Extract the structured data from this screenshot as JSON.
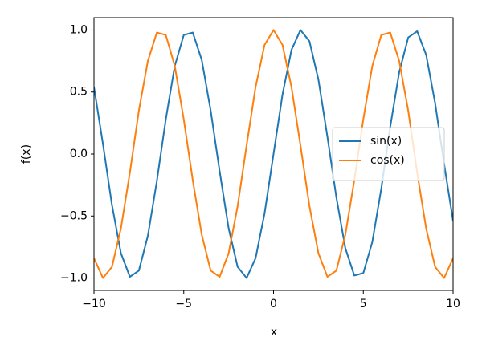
{
  "chart_data": {
    "type": "line",
    "x_label": "x",
    "y_label": "f(x)",
    "x": [
      -10,
      -9.5,
      -9,
      -8.5,
      -8,
      -7.5,
      -7,
      -6.5,
      -6,
      -5.5,
      -5,
      -4.5,
      -4,
      -3.5,
      -3,
      -2.5,
      -2,
      -1.5,
      -1,
      -0.5,
      0,
      0.5,
      1,
      1.5,
      2,
      2.5,
      3,
      3.5,
      4,
      4.5,
      5,
      5.5,
      6,
      6.5,
      7,
      7.5,
      8,
      8.5,
      9,
      9.5,
      10
    ],
    "series": [
      {
        "name": "sin(x)",
        "color": "#1f77b4",
        "values": [
          0.54,
          0.08,
          -0.41,
          -0.8,
          -0.99,
          -0.94,
          -0.66,
          -0.22,
          0.28,
          0.71,
          0.96,
          0.98,
          0.76,
          0.35,
          -0.14,
          -0.6,
          -0.91,
          -1.0,
          -0.84,
          -0.48,
          0,
          0.48,
          0.84,
          1.0,
          0.91,
          0.6,
          0.14,
          -0.35,
          -0.76,
          -0.98,
          -0.96,
          -0.71,
          -0.28,
          0.22,
          0.66,
          0.94,
          0.99,
          0.8,
          0.41,
          -0.08,
          -0.54
        ]
      },
      {
        "name": "cos(x)",
        "color": "#ff7f0e",
        "values": [
          -0.84,
          -1.0,
          -0.91,
          -0.6,
          -0.15,
          0.35,
          0.75,
          0.98,
          0.96,
          0.71,
          0.28,
          -0.21,
          -0.65,
          -0.94,
          -0.99,
          -0.8,
          -0.42,
          0.07,
          0.54,
          0.88,
          1.0,
          0.88,
          0.54,
          0.07,
          -0.42,
          -0.8,
          -0.99,
          -0.94,
          -0.65,
          -0.21,
          0.28,
          0.71,
          0.96,
          0.98,
          0.75,
          0.35,
          -0.15,
          -0.6,
          -0.91,
          -1.0,
          -0.84
        ]
      }
    ],
    "xlim": [
      -10,
      10
    ],
    "ylim": [
      -1.1,
      1.1
    ],
    "xticks": [
      {
        "value": -10,
        "label": "−10"
      },
      {
        "value": -5,
        "label": "−5"
      },
      0,
      5,
      10
    ],
    "yticks": [
      {
        "value": -1,
        "label": "−1.0"
      },
      {
        "value": -0.5,
        "label": "−0.5"
      },
      {
        "value": 0,
        "label": "0.0"
      },
      {
        "value": 0.5,
        "label": "0.5"
      },
      {
        "value": 1,
        "label": "1.0"
      }
    ],
    "grid": false,
    "legend": "center right"
  }
}
